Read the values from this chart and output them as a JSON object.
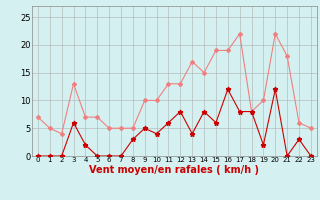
{
  "x": [
    0,
    1,
    2,
    3,
    4,
    5,
    6,
    7,
    8,
    9,
    10,
    11,
    12,
    13,
    14,
    15,
    16,
    17,
    18,
    19,
    20,
    21,
    22,
    23
  ],
  "rafales": [
    7,
    5,
    4,
    13,
    7,
    7,
    5,
    5,
    5,
    10,
    10,
    13,
    13,
    17,
    15,
    19,
    19,
    22,
    8,
    10,
    22,
    18,
    6,
    5
  ],
  "moyen": [
    0,
    0,
    0,
    6,
    2,
    0,
    0,
    0,
    3,
    5,
    4,
    6,
    8,
    4,
    8,
    6,
    12,
    8,
    8,
    2,
    12,
    0,
    3,
    0
  ],
  "color_rafales": "#f08080",
  "color_moyen": "#cc0000",
  "bg_color": "#d4f0f0",
  "grid_color": "#b0b0b0",
  "xlabel": "Vent moyen/en rafales ( km/h )",
  "xlabel_color": "#cc0000",
  "ylabel_ticks": [
    0,
    5,
    10,
    15,
    20,
    25
  ],
  "ylim": [
    0,
    27
  ],
  "xlim": [
    -0.5,
    23.5
  ],
  "tick_fontsize": 6,
  "xlabel_fontsize": 7
}
